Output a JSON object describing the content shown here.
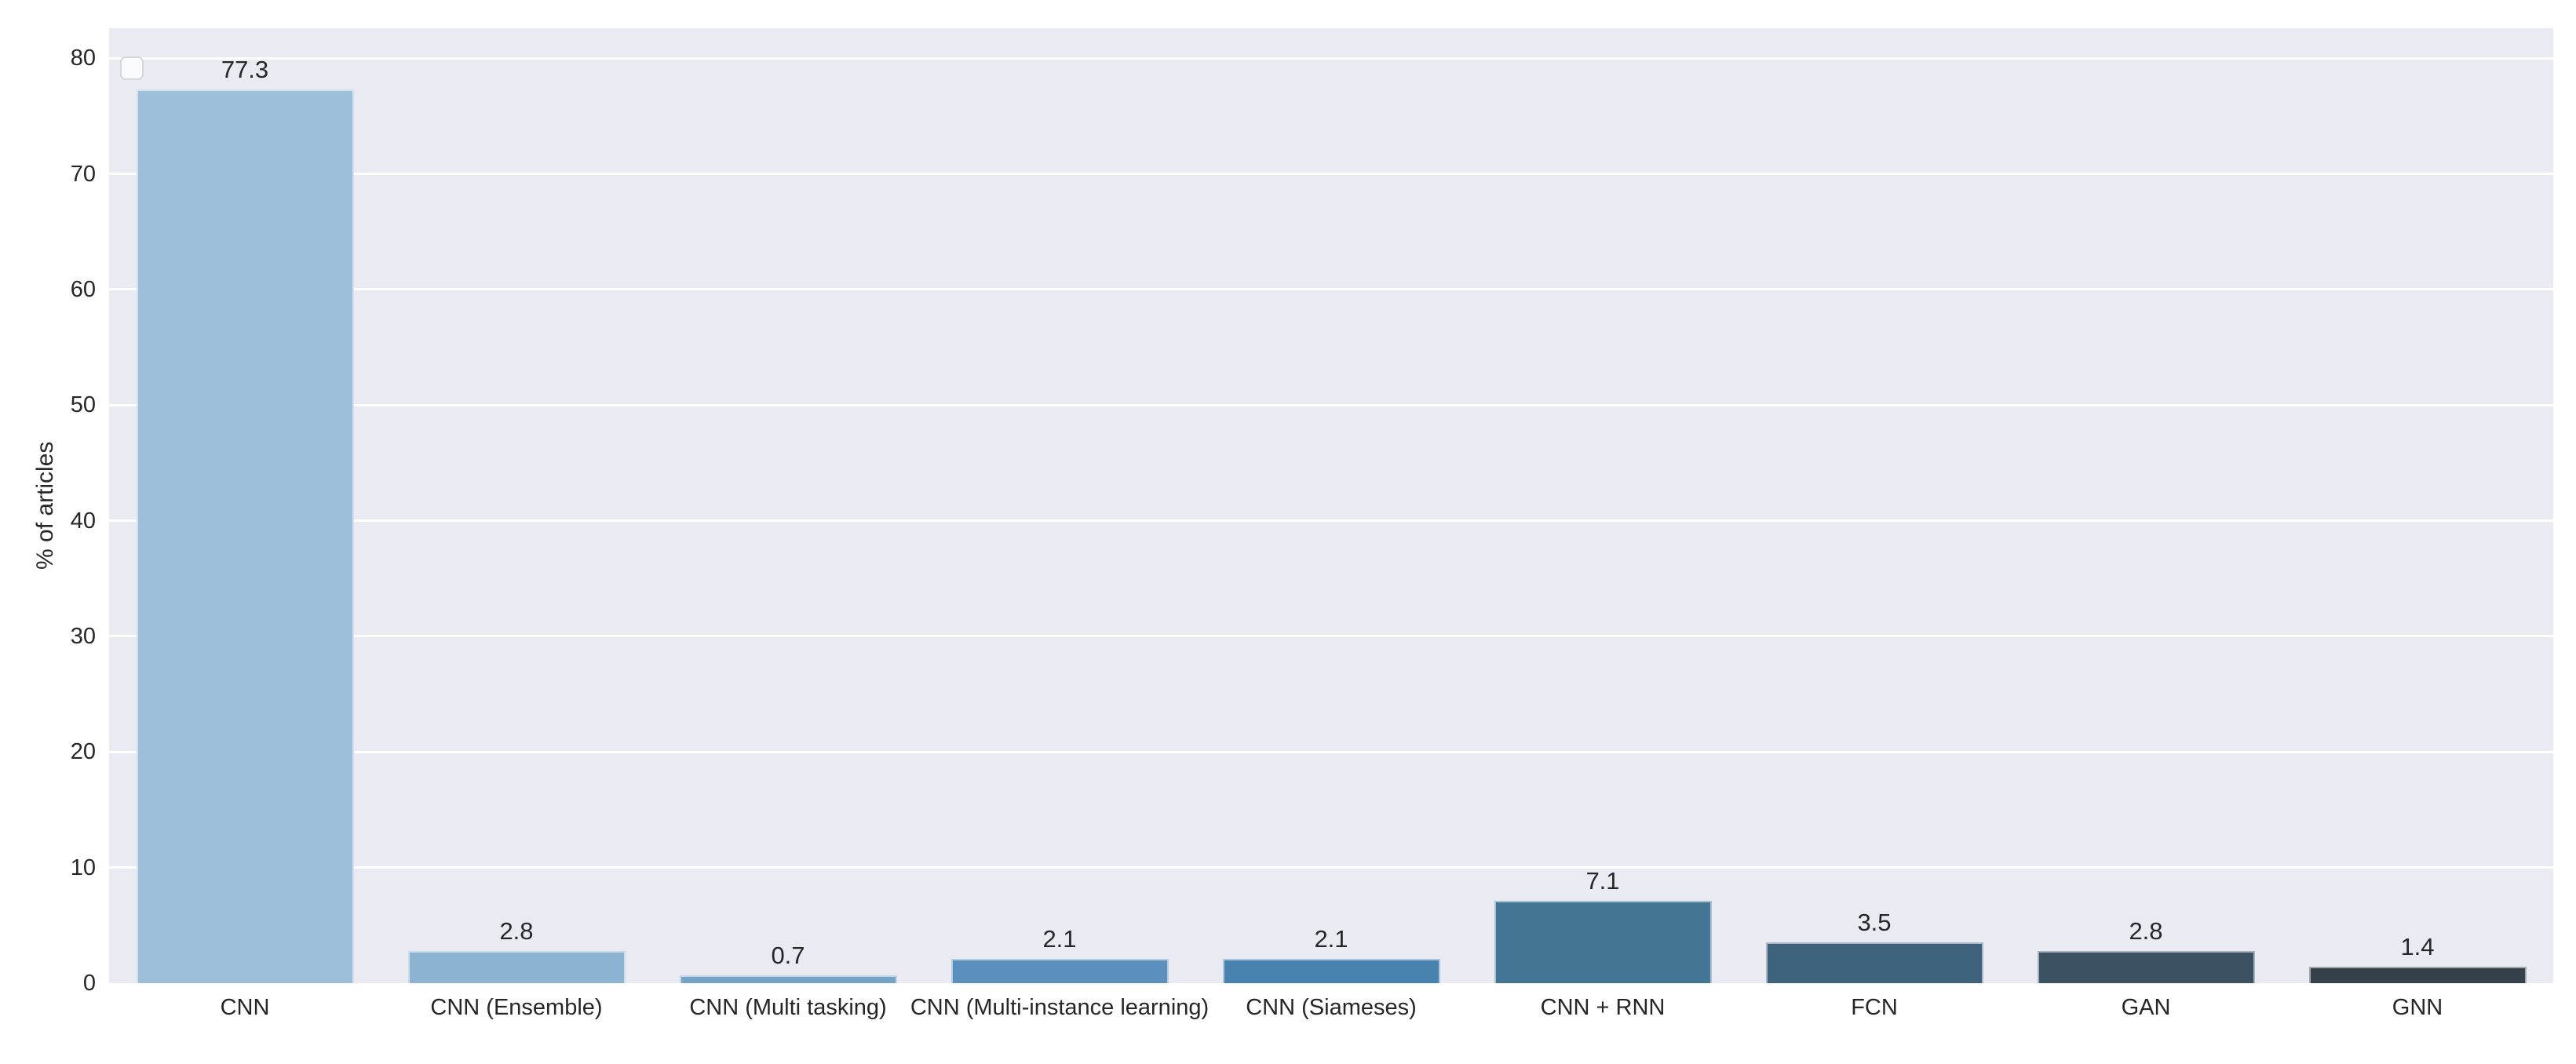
{
  "chart_data": {
    "type": "bar",
    "title": "",
    "xlabel": "",
    "ylabel": "% of articles",
    "categories": [
      "CNN",
      "CNN (Ensemble)",
      "CNN (Multi tasking)",
      "CNN (Multi-instance learning)",
      "CNN (Siameses)",
      "CNN + RNN",
      "FCN",
      "GAN",
      "GNN"
    ],
    "values": [
      77.3,
      2.8,
      0.7,
      2.1,
      2.1,
      7.1,
      3.5,
      2.8,
      1.4
    ],
    "bar_labels": [
      "77.3",
      "2.8",
      "0.7",
      "2.1",
      "2.1",
      "7.1",
      "3.5",
      "2.8",
      "1.4"
    ],
    "bar_colors": [
      "#9dbfd9",
      "#8cb3d2",
      "#76a4c8",
      "#5a90bb",
      "#4883b0",
      "#437695",
      "#3e627c",
      "#3b5265",
      "#35404a"
    ],
    "yticks": [
      0,
      10,
      20,
      30,
      40,
      50,
      60,
      70,
      80
    ],
    "ytick_labels": [
      "0",
      "10",
      "20",
      "30",
      "40",
      "50",
      "60",
      "70",
      "80"
    ],
    "ylim": [
      0,
      82.6
    ],
    "bar_width_fraction": 0.8,
    "grid": "horizontal",
    "legend": {
      "visible": true,
      "entries": []
    },
    "colors": {
      "figure_background": "#ffffff",
      "plot_background": "#eaeaf2",
      "gridline": "#ffffff",
      "text": "#262626"
    }
  }
}
